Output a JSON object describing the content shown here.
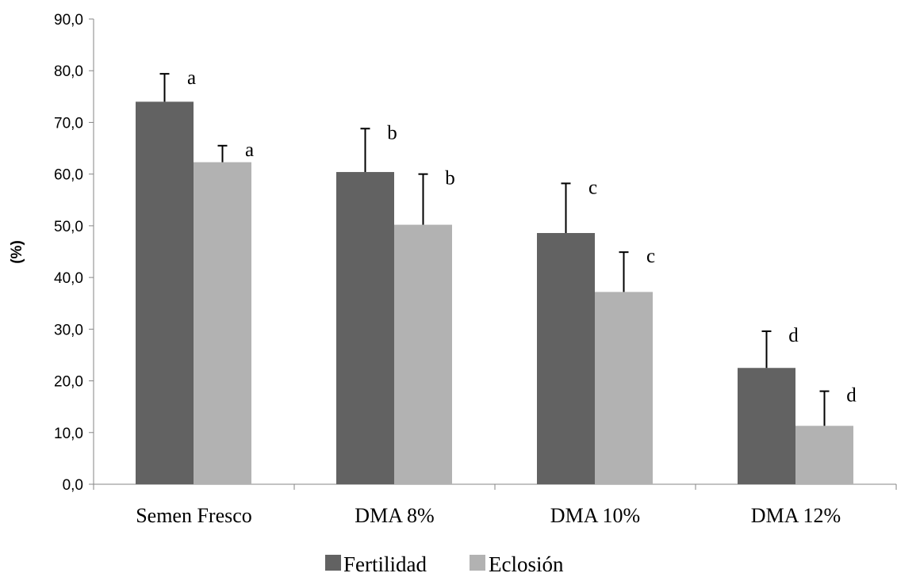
{
  "chart_data": {
    "type": "bar",
    "title": "",
    "xlabel": "",
    "ylabel": "(%)",
    "ylim": [
      0,
      90
    ],
    "y_ticks": [
      "0,0",
      "10,0",
      "20,0",
      "30,0",
      "40,0",
      "50,0",
      "60,0",
      "70,0",
      "80,0",
      "90,0"
    ],
    "categories": [
      "Semen Fresco",
      "DMA 8%",
      "DMA 10%",
      "DMA 12%"
    ],
    "series": [
      {
        "name": "Fertilidad",
        "color": "#626262",
        "values": [
          74.0,
          60.4,
          48.6,
          22.5
        ],
        "error_upper": [
          79.4,
          68.8,
          58.2,
          29.6
        ],
        "significance": [
          "a",
          "b",
          "c",
          "d"
        ]
      },
      {
        "name": "Eclosión",
        "color": "#b2b2b2",
        "values": [
          62.3,
          50.2,
          37.2,
          11.3
        ],
        "error_upper": [
          65.5,
          60.0,
          44.9,
          18.0
        ],
        "significance": [
          "a",
          "b",
          "c",
          "d"
        ]
      }
    ],
    "grid": false,
    "legend_position": "bottom"
  }
}
